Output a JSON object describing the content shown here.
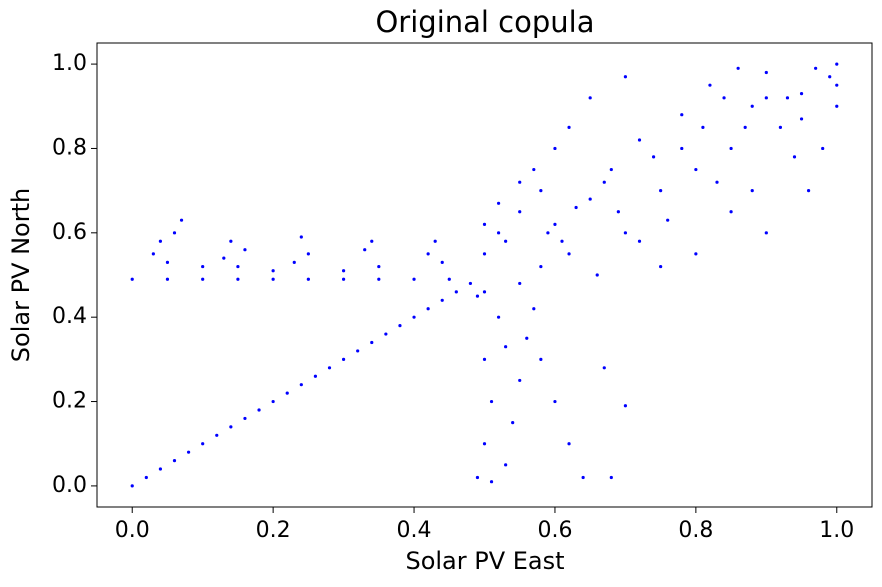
{
  "chart_data": {
    "type": "scatter",
    "title": "Original copula",
    "x_label": "Solar PV East",
    "y_label": "Solar PV North",
    "xlim": [
      -0.05,
      1.05
    ],
    "ylim": [
      -0.05,
      1.05
    ],
    "xticks": [
      {
        "value": 0,
        "label": "0.0"
      },
      0.2,
      0.4,
      0.6,
      0.8,
      {
        "value": 1,
        "label": "1.0"
      }
    ],
    "yticks": [
      {
        "value": 0,
        "label": "0.0"
      },
      0.2,
      0.4,
      0.6,
      0.8,
      {
        "value": 1,
        "label": "1.0"
      }
    ],
    "grid": false,
    "series": [
      {
        "color": "blue",
        "x": [
          0,
          0.02,
          0.04,
          0.06,
          0.08,
          0.1,
          0.12,
          0.14,
          0.16,
          0.18,
          0.2,
          0.22,
          0.24,
          0.26,
          0.28,
          0.3,
          0.32,
          0.34,
          0.36,
          0.38,
          0.4,
          0.42,
          0.44,
          0.46,
          0.48,
          0,
          0.05,
          0.1,
          0.15,
          0.2,
          0.25,
          0.3,
          0.35,
          0.4,
          0.45,
          0.03,
          0.04,
          0.05,
          0.06,
          0.13,
          0.14,
          0.15,
          0.16,
          0.23,
          0.24,
          0.25,
          0.33,
          0.34,
          0.35,
          0.42,
          0.43,
          0.44,
          0.1,
          0.2,
          0.3,
          0.07,
          0.49,
          0.5,
          0.51,
          0.5,
          0.52,
          0.49,
          0.53,
          0.54,
          0.55,
          0.56,
          0.57,
          0.58,
          0.6,
          0.62,
          0.64,
          0.68,
          0.67,
          0.7,
          0.55,
          0.51,
          0.53,
          0.5,
          0.5,
          0.52,
          0.55,
          0.53,
          0.58,
          0.6,
          0.62,
          0.65,
          0.68,
          0.7,
          0.72,
          0.75,
          0.78,
          0.8,
          0.82,
          0.85,
          0.88,
          0.9,
          0.92,
          0.95,
          0.97,
          1.0,
          1.0,
          0.98,
          0.96,
          0.9,
          0.85,
          0.8,
          0.75,
          0.62,
          0.65,
          0.7,
          0.6,
          0.57,
          0.55,
          0.52,
          0.5,
          0.58,
          0.66,
          0.72,
          0.76,
          0.83,
          0.87,
          0.93,
          0.99,
          0.94,
          0.88,
          0.81,
          0.74,
          0.67,
          0.63,
          0.59,
          0.86,
          0.9,
          0.95,
          1.0,
          0.84,
          0.78,
          0.69,
          0.61
        ],
        "y": [
          0,
          0.02,
          0.04,
          0.06,
          0.08,
          0.1,
          0.12,
          0.14,
          0.16,
          0.18,
          0.2,
          0.22,
          0.24,
          0.26,
          0.28,
          0.3,
          0.32,
          0.34,
          0.36,
          0.38,
          0.4,
          0.42,
          0.44,
          0.46,
          0.48,
          0.49,
          0.49,
          0.49,
          0.49,
          0.49,
          0.49,
          0.49,
          0.49,
          0.49,
          0.49,
          0.55,
          0.58,
          0.53,
          0.6,
          0.54,
          0.58,
          0.52,
          0.56,
          0.53,
          0.59,
          0.55,
          0.56,
          0.58,
          0.52,
          0.55,
          0.58,
          0.53,
          0.52,
          0.51,
          0.51,
          0.63,
          0.02,
          0.1,
          0.2,
          0.3,
          0.4,
          0.45,
          0.05,
          0.15,
          0.25,
          0.35,
          0.42,
          0.3,
          0.2,
          0.1,
          0.02,
          0.02,
          0.28,
          0.19,
          0.48,
          0.01,
          0.33,
          0.46,
          0.55,
          0.6,
          0.65,
          0.58,
          0.7,
          0.62,
          0.55,
          0.68,
          0.75,
          0.6,
          0.82,
          0.7,
          0.88,
          0.75,
          0.95,
          0.8,
          0.9,
          0.98,
          0.85,
          0.93,
          0.99,
          0.95,
          0.9,
          0.8,
          0.7,
          0.6,
          0.65,
          0.55,
          0.52,
          0.85,
          0.92,
          0.97,
          0.8,
          0.75,
          0.72,
          0.67,
          0.62,
          0.52,
          0.5,
          0.58,
          0.63,
          0.72,
          0.85,
          0.92,
          0.97,
          0.78,
          0.7,
          0.85,
          0.78,
          0.72,
          0.66,
          0.6,
          0.99,
          0.92,
          0.87,
          1.0,
          0.92,
          0.8,
          0.65,
          0.58
        ]
      }
    ]
  }
}
